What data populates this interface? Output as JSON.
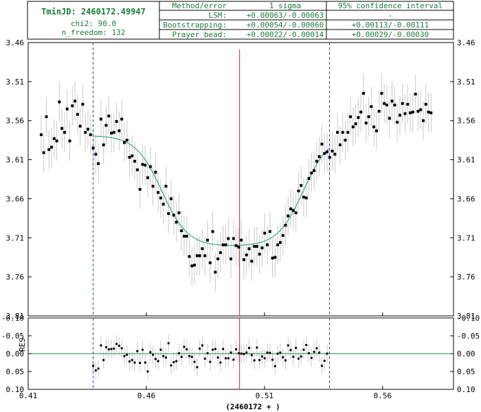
{
  "header": {
    "tmin_label": "TminJD: 2460172.49947",
    "chi2_label": "chi2: 90.0",
    "nfree_label": "n_freedom: 132",
    "columns": [
      "Method/error",
      "1 sigma",
      "95% confidence interval"
    ],
    "rows": [
      {
        "method": "LSM:",
        "sigma1": "+0.00063/-0.00063",
        "ci95": "-"
      },
      {
        "method": "Bootstrapping:",
        "sigma1": "+0.00054/-0.00060",
        "ci95": "+0.00113/-0.00111"
      },
      {
        "method": "Prayer bead:",
        "sigma1": "+0.00022/-0.00014",
        "ci95": "+0.00029/-0.00030"
      }
    ]
  },
  "colors": {
    "points": "#000000",
    "errorbars": "#c8c8c8",
    "model": "#1a9a6a",
    "zero_line": "#1a8a4a",
    "tmin_line": "#cc2222",
    "window_lines": "#3344bb",
    "frame": "#000000",
    "header_text": "#1a7a3c"
  },
  "chart_data": [
    {
      "type": "scatter",
      "panel": "light_curve",
      "title": "",
      "xlabel": "(2460172 + )",
      "ylabel": "",
      "xlim": [
        0.41,
        0.59
      ],
      "ylim": [
        3.81,
        3.46
      ],
      "y_inverted": true,
      "x_ticks": [
        0.41,
        0.46,
        0.51,
        0.56
      ],
      "x_tick_labels": [
        "0.41",
        "0.46",
        "0.51",
        "0.56"
      ],
      "y_ticks": [
        3.46,
        3.51,
        3.56,
        3.61,
        3.66,
        3.71,
        3.76,
        3.81
      ],
      "y_tick_labels": [
        "3.46",
        "3.51",
        "3.56",
        "3.61",
        "3.66",
        "3.71",
        "3.76",
        "3.81"
      ],
      "tmin": 0.49947,
      "fit_window": [
        0.4375,
        0.5375
      ],
      "model": {
        "baseline_pre": 3.579,
        "baseline_post": 3.578,
        "depth_bottom": 3.721,
        "ingress_mid": 0.4665,
        "egress_mid": 0.5265,
        "slope_width": 0.0055
      },
      "points_x": [
        0.4155,
        0.4166,
        0.4177,
        0.4188,
        0.4199,
        0.421,
        0.4221,
        0.4232,
        0.4243,
        0.4254,
        0.4265,
        0.4276,
        0.4287,
        0.4298,
        0.4309,
        0.432,
        0.4331,
        0.4342,
        0.4353,
        0.4364,
        0.4375,
        0.4386,
        0.4397,
        0.4408,
        0.4419,
        0.443,
        0.4441,
        0.4452,
        0.4463,
        0.4474,
        0.4485,
        0.4496,
        0.4507,
        0.4518,
        0.4529,
        0.454,
        0.4551,
        0.4562,
        0.4573,
        0.4584,
        0.4595,
        0.4606,
        0.4617,
        0.4628,
        0.4639,
        0.465,
        0.4661,
        0.4672,
        0.4683,
        0.4694,
        0.4705,
        0.4716,
        0.4727,
        0.4738,
        0.4749,
        0.476,
        0.4771,
        0.4782,
        0.4793,
        0.4804,
        0.4815,
        0.4826,
        0.4837,
        0.4848,
        0.4859,
        0.487,
        0.4881,
        0.4892,
        0.4903,
        0.4914,
        0.4925,
        0.4936,
        0.4947,
        0.4958,
        0.4969,
        0.498,
        0.4991,
        0.5002,
        0.5013,
        0.5024,
        0.5035,
        0.5046,
        0.5057,
        0.5068,
        0.5079,
        0.509,
        0.5101,
        0.5112,
        0.5123,
        0.5134,
        0.5145,
        0.5156,
        0.5167,
        0.5178,
        0.5189,
        0.52,
        0.5211,
        0.5222,
        0.5233,
        0.5244,
        0.5255,
        0.5266,
        0.5277,
        0.5288,
        0.5299,
        0.531,
        0.5321,
        0.5332,
        0.5343,
        0.5354,
        0.5365,
        0.5376,
        0.5387,
        0.5398,
        0.5409,
        0.542,
        0.5431,
        0.5442,
        0.5453,
        0.5464,
        0.5475,
        0.5486,
        0.5497,
        0.5508,
        0.5519,
        0.553,
        0.5541,
        0.5552,
        0.5563,
        0.5574,
        0.5585,
        0.5596,
        0.5607,
        0.5618,
        0.5629,
        0.564,
        0.5651,
        0.5662,
        0.5673,
        0.5684,
        0.5695,
        0.5706,
        0.5717,
        0.5728,
        0.5739,
        0.575,
        0.5761,
        0.5772,
        0.5783,
        0.5794,
        0.5805
      ],
      "points_y": [
        3.578,
        3.601,
        3.555,
        3.597,
        3.594,
        3.583,
        3.586,
        3.536,
        3.57,
        3.575,
        3.545,
        3.586,
        3.541,
        3.535,
        3.552,
        3.567,
        3.539,
        3.575,
        3.571,
        3.578,
        3.595,
        3.603,
        3.615,
        3.558,
        3.591,
        3.566,
        3.554,
        3.576,
        3.575,
        3.561,
        3.573,
        3.558,
        3.588,
        3.585,
        3.607,
        3.605,
        3.612,
        3.623,
        3.648,
        3.616,
        3.617,
        3.633,
        3.619,
        3.644,
        3.626,
        3.652,
        3.659,
        3.667,
        3.644,
        3.679,
        3.66,
        3.681,
        3.69,
        3.678,
        3.701,
        3.708,
        3.708,
        3.734,
        3.746,
        3.745,
        3.733,
        3.733,
        3.724,
        3.733,
        3.713,
        3.742,
        3.702,
        3.754,
        3.737,
        3.729,
        3.719,
        3.719,
        3.711,
        3.737,
        3.711,
        3.72,
        3.722,
        3.713,
        3.738,
        3.732,
        3.724,
        3.74,
        3.721,
        3.721,
        3.731,
        3.723,
        3.704,
        3.719,
        3.702,
        3.736,
        3.735,
        3.719,
        3.716,
        3.707,
        3.694,
        3.682,
        3.673,
        3.675,
        3.678,
        3.65,
        3.643,
        3.658,
        3.659,
        3.634,
        3.627,
        3.624,
        3.612,
        3.606,
        3.59,
        3.602,
        3.6,
        3.607,
        3.599,
        3.603,
        3.575,
        3.591,
        3.575,
        3.585,
        3.575,
        3.555,
        3.568,
        3.564,
        3.556,
        3.549,
        3.525,
        3.563,
        3.555,
        3.542,
        3.568,
        3.573,
        3.548,
        3.525,
        3.538,
        3.54,
        3.557,
        3.535,
        3.54,
        3.562,
        3.553,
        3.538,
        3.551,
        3.539,
        3.55,
        3.549,
        3.526,
        3.548,
        3.546,
        3.56,
        3.539,
        3.549,
        3.55,
        3.554
      ],
      "errorbar": 0.025
    },
    {
      "type": "scatter",
      "panel": "residuals",
      "title": "",
      "ylabel": "RES",
      "xlim": [
        0.41,
        0.59
      ],
      "ylim": [
        0.1,
        -0.1
      ],
      "y_inverted": true,
      "y_ticks": [
        -0.1,
        -0.05,
        0.0,
        0.05,
        0.1
      ],
      "y_tick_labels": [
        "-0.10",
        "-0.05",
        "0.00",
        "0.05",
        "0.10"
      ],
      "points_x": [
        0.4375,
        0.4386,
        0.4397,
        0.4408,
        0.4419,
        0.443,
        0.4441,
        0.4452,
        0.4463,
        0.4474,
        0.4485,
        0.4496,
        0.4507,
        0.4518,
        0.4529,
        0.454,
        0.4551,
        0.4562,
        0.4573,
        0.4584,
        0.4595,
        0.4606,
        0.4617,
        0.4628,
        0.4639,
        0.465,
        0.4661,
        0.4672,
        0.4683,
        0.4694,
        0.4705,
        0.4716,
        0.4727,
        0.4738,
        0.4749,
        0.476,
        0.4771,
        0.4782,
        0.4793,
        0.4804,
        0.4815,
        0.4826,
        0.4837,
        0.4848,
        0.4859,
        0.487,
        0.4881,
        0.4892,
        0.4903,
        0.4914,
        0.4925,
        0.4936,
        0.4947,
        0.4958,
        0.4969,
        0.498,
        0.4991,
        0.5002,
        0.5013,
        0.5024,
        0.5035,
        0.5046,
        0.5057,
        0.5068,
        0.5079,
        0.509,
        0.5101,
        0.5112,
        0.5123,
        0.5134,
        0.5145,
        0.5156,
        0.5167,
        0.5178,
        0.5189,
        0.52,
        0.5211,
        0.5222,
        0.5233,
        0.5244,
        0.5255,
        0.5266,
        0.5277,
        0.5288,
        0.5299,
        0.531,
        0.5321,
        0.5332,
        0.5343,
        0.5354,
        0.5365
      ],
      "points_y": [
        0.034,
        0.047,
        0.042,
        -0.023,
        0.018,
        -0.018,
        -0.012,
        -0.013,
        -0.014,
        -0.027,
        -0.022,
        -0.015,
        0.007,
        0.003,
        0.022,
        0.018,
        0.025,
        -0.007,
        0.026,
        -0.011,
        0.025,
        0.05,
        -0.004,
        0.003,
        0.015,
        0.021,
        -0.011,
        0.007,
        0.011,
        -0.029,
        0.033,
        0.024,
        0.021,
        -0.001,
        0.009,
        -0.019,
        -0.012,
        0.007,
        0.009,
        0.023,
        0.038,
        -0.014,
        -0.023,
        0.014,
        -0.001,
        0.023,
        -0.011,
        -0.013,
        0.011,
        0.025,
        -0.013,
        0.013,
        0.013,
        -0.003,
        0.017,
        -0.012,
        -0.001,
        0.0,
        0.001,
        -0.003,
        -0.016,
        0.004,
        0.019,
        -0.017,
        0.018,
        0.008,
        0.013,
        -0.003,
        -0.002,
        0.017,
        0.035,
        0.0,
        -0.003,
        0.01,
        0.019,
        -0.023,
        -0.01,
        0.009,
        -0.016,
        0.014,
        0.008,
        -0.011,
        -0.024,
        -0.001,
        0.012,
        -0.005,
        -0.015,
        -0.003,
        0.034,
        0.02,
        0.0
      ],
      "errorbar": 0.025
    }
  ]
}
